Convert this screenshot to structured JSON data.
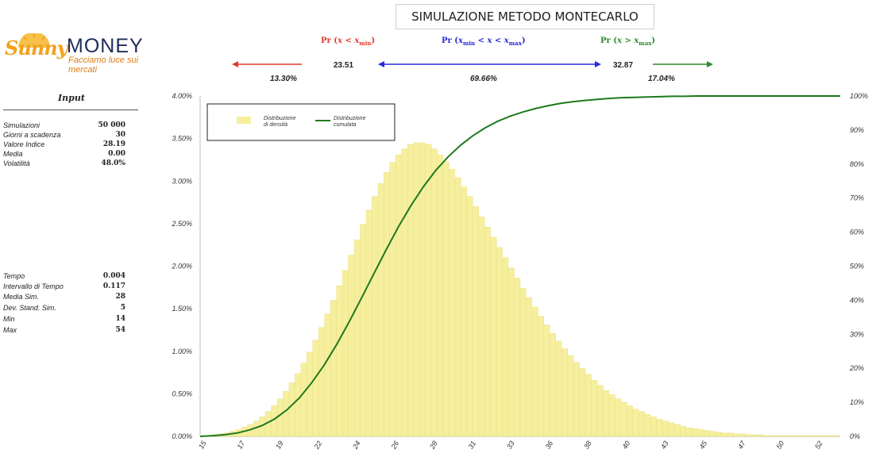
{
  "title": "SIMULAZIONE METODO MONTECARLO",
  "logo": {
    "sunny": "Sunny",
    "money": "MONEY",
    "tagline": "Facciamo luce sui mercati"
  },
  "probabilities": {
    "left": {
      "label": "Pr (x < xmin)",
      "percent": "13.30%",
      "color": "#e03a2e"
    },
    "middle": {
      "label": "Pr (xmin < x < xmax)",
      "percent": "69.66%",
      "color": "#2a2ad8"
    },
    "right": {
      "label": "Pr (x > xmax)",
      "percent": "17.04%",
      "color": "#2e8b2e"
    },
    "xmin": "23.51",
    "xmax": "32.87"
  },
  "input": {
    "heading": "Input",
    "params": [
      {
        "label": "Simulazioni",
        "value": "50 000"
      },
      {
        "label": "Giorni a scadenza",
        "value": "30"
      },
      {
        "label": "Valore Indice",
        "value": "28.19"
      },
      {
        "label": "Media",
        "value": "0.00"
      },
      {
        "label": "Volatilità",
        "value": "48.0%"
      }
    ],
    "stats": [
      {
        "label": "Tempo",
        "value": "0.004"
      },
      {
        "label": "Intervallo di Tempo",
        "value": "0.117"
      },
      {
        "label": "Media Sim.",
        "value": "28"
      },
      {
        "label": "Dev. Stand. Sim.",
        "value": "5"
      },
      {
        "label": "Min",
        "value": "14"
      },
      {
        "label": "Max",
        "value": "54"
      }
    ]
  },
  "chart_data": {
    "type": "bar",
    "title": "",
    "xlabel": "",
    "ylabel": "",
    "ylim": [
      0,
      4
    ],
    "y2lim": [
      0,
      100
    ],
    "y_ticks": [
      "0.00%",
      "0.50%",
      "1.00%",
      "1.50%",
      "2.00%",
      "2.50%",
      "3.00%",
      "3.50%",
      "4.00%"
    ],
    "y2_ticks": [
      "0%",
      "10%",
      "20%",
      "30%",
      "40%",
      "50%",
      "60%",
      "70%",
      "80%",
      "90%",
      "100%"
    ],
    "x_ticks": [
      "15",
      "17",
      "19",
      "22",
      "24",
      "26",
      "28",
      "31",
      "33",
      "36",
      "38",
      "40",
      "43",
      "45",
      "47",
      "50",
      "52"
    ],
    "legend": {
      "density": "Distribuzione di densità",
      "cumulative": "Distribuzione cumulata",
      "placement": "top-left"
    },
    "colors": {
      "density": "#f6ef9e",
      "density_edge": "#e6dc7a",
      "cumulative": "#1e7a1e"
    },
    "series": [
      {
        "name": "Distribuzione di densità",
        "type": "bar",
        "values": [
          0.01,
          0.01,
          0.02,
          0.03,
          0.04,
          0.06,
          0.08,
          0.11,
          0.14,
          0.18,
          0.23,
          0.29,
          0.36,
          0.44,
          0.53,
          0.63,
          0.74,
          0.86,
          0.99,
          1.13,
          1.28,
          1.44,
          1.6,
          1.77,
          1.95,
          2.13,
          2.31,
          2.49,
          2.66,
          2.82,
          2.97,
          3.1,
          3.22,
          3.31,
          3.38,
          3.43,
          3.45,
          3.45,
          3.43,
          3.38,
          3.31,
          3.23,
          3.14,
          3.04,
          2.93,
          2.82,
          2.7,
          2.58,
          2.46,
          2.34,
          2.22,
          2.1,
          1.98,
          1.86,
          1.74,
          1.63,
          1.52,
          1.41,
          1.31,
          1.21,
          1.12,
          1.03,
          0.95,
          0.87,
          0.8,
          0.73,
          0.66,
          0.6,
          0.54,
          0.49,
          0.44,
          0.4,
          0.36,
          0.32,
          0.29,
          0.26,
          0.23,
          0.2,
          0.18,
          0.16,
          0.14,
          0.12,
          0.1,
          0.09,
          0.08,
          0.07,
          0.06,
          0.05,
          0.04,
          0.04,
          0.03,
          0.03,
          0.02,
          0.02,
          0.02,
          0.01,
          0.01,
          0.01,
          0.01,
          0.01,
          0.01,
          0.01,
          0.01,
          0.01,
          0.01,
          0.01,
          0.01,
          0.01
        ]
      },
      {
        "name": "Distribuzione cumulata",
        "type": "line",
        "values": [
          0,
          0.2,
          0.5,
          1.0,
          1.9,
          3.2,
          5.1,
          7.8,
          11.3,
          15.8,
          21.0,
          27.0,
          33.6,
          40.6,
          47.8,
          54.9,
          61.7,
          67.9,
          73.4,
          78.2,
          82.2,
          85.6,
          88.4,
          90.7,
          92.6,
          94.1,
          95.3,
          96.3,
          97.1,
          97.8,
          98.3,
          98.7,
          99.0,
          99.3,
          99.5,
          99.6,
          99.7,
          99.8,
          99.9,
          99.9,
          100,
          100,
          100,
          100,
          100,
          100,
          100,
          100,
          100,
          100
        ]
      }
    ]
  }
}
